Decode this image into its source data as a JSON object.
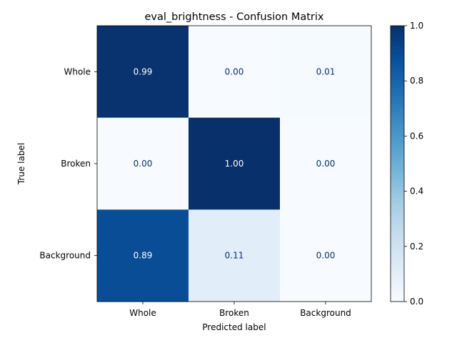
{
  "chart_data": {
    "type": "heatmap",
    "title": "eval_brightness - Confusion Matrix",
    "xlabel": "Predicted label",
    "ylabel": "True label",
    "x_categories": [
      "Whole",
      "Broken",
      "Background"
    ],
    "y_categories": [
      "Whole",
      "Broken",
      "Background"
    ],
    "values": [
      [
        0.99,
        0.0,
        0.01
      ],
      [
        0.0,
        1.0,
        0.0
      ],
      [
        0.89,
        0.11,
        0.0
      ]
    ],
    "value_labels": [
      [
        "0.99",
        "0.00",
        "0.01"
      ],
      [
        "0.00",
        "1.00",
        "0.00"
      ],
      [
        "0.89",
        "0.11",
        "0.00"
      ]
    ],
    "colormap": "Blues",
    "vmin": 0.0,
    "vmax": 1.0,
    "colorbar": {
      "ticks": [
        0.0,
        0.2,
        0.4,
        0.6,
        0.8,
        1.0
      ],
      "tick_labels": [
        "0.0",
        "0.2",
        "0.4",
        "0.6",
        "0.8",
        "1.0"
      ]
    },
    "text_colors": {
      "dark_cell": "#ffffff",
      "light_cell": "#08306b"
    },
    "grid": false
  }
}
